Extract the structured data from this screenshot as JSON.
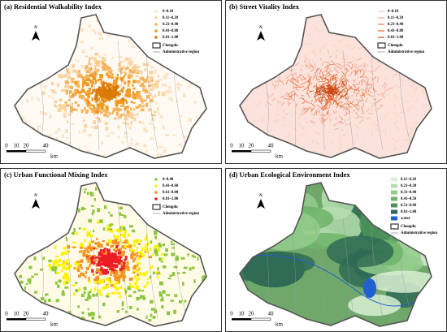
{
  "panels": [
    {
      "title": "(a) Residential Walkability Index",
      "map_color": "#fffaf3",
      "legend": [
        {
          "label": "0~0.10",
          "color": "#fde3c4"
        },
        {
          "label": "0.11~0.20",
          "color": "#fcd19c"
        },
        {
          "label": "0.21~0.40",
          "color": "#f9b35a"
        },
        {
          "label": "0.41~0.80",
          "color": "#f39a1e"
        },
        {
          "label": "0.81~1.00",
          "color": "#d97b06"
        }
      ],
      "boundary_label": "Chengdu",
      "admin_label": "Administrative region",
      "north": "N",
      "scale": [
        "0",
        "10",
        "20",
        "40"
      ],
      "scale_unit": "km"
    },
    {
      "title": "(b) Street Vitality Index",
      "map_color": "#fbe3dc",
      "legend": [
        {
          "label": "0~0.10",
          "color": "#f8c9bd"
        },
        {
          "label": "0.11~0.20",
          "color": "#f4a48e"
        },
        {
          "label": "0.21~0.40",
          "color": "#f07c50"
        },
        {
          "label": "0.41~0.80",
          "color": "#e8621f"
        },
        {
          "label": "0.81~1.00",
          "color": "#c9470e"
        }
      ],
      "boundary_label": "Chengdu",
      "admin_label": "Administrative region",
      "north": "N",
      "scale": [
        "0",
        "10",
        "20",
        "40"
      ],
      "scale_unit": "km"
    },
    {
      "title": "(c) Urban Functional Mixing Index",
      "map_color": "#fffbe6",
      "legend": [
        {
          "label": "0~0.40",
          "color": "#8cc63f"
        },
        {
          "label": "0.41~0.60",
          "color": "#fff200"
        },
        {
          "label": "0.61~0.80",
          "color": "#f7941d"
        },
        {
          "label": "0.81~1.00",
          "color": "#ed1c24"
        }
      ],
      "boundary_label": "Chengdu",
      "admin_label": "Administrative region",
      "north": "N",
      "scale": [
        "0",
        "10",
        "20",
        "40"
      ],
      "scale_unit": "km"
    },
    {
      "title": "(d) Urban Ecological Environment Index",
      "map_color": "#6fa86a",
      "legend": [
        {
          "label": "0.11~0.20",
          "color": "#d9f0d3"
        },
        {
          "label": "0.21~0.30",
          "color": "#b6dfae"
        },
        {
          "label": "0.31~0.40",
          "color": "#94cc8c"
        },
        {
          "label": "0.41~0.50",
          "color": "#6fb46b"
        },
        {
          "label": "0.51~0.60",
          "color": "#4e935a"
        },
        {
          "label": "0.61~1.00",
          "color": "#2f6b55"
        },
        {
          "label": "water",
          "color": "#2060d0"
        }
      ],
      "boundary_label": "Chengdu",
      "admin_label": "Administrative region",
      "north": "N",
      "scale": [
        "0",
        "10",
        "20",
        "40"
      ],
      "scale_unit": "km"
    }
  ]
}
